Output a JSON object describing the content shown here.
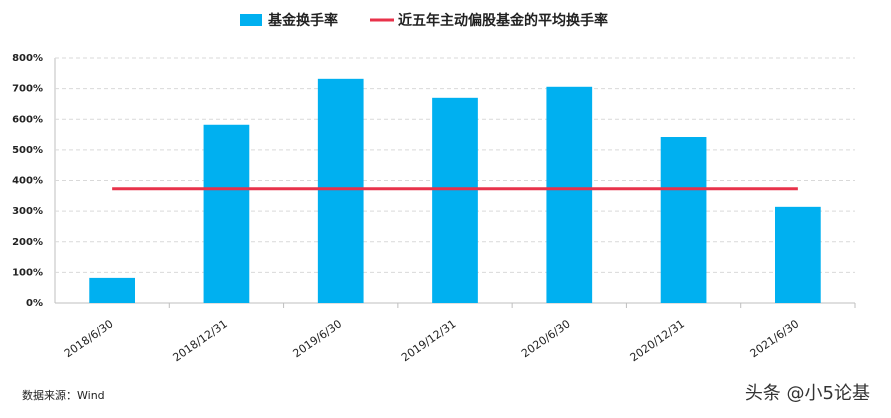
{
  "chart_data": {
    "type": "bar",
    "categories": [
      "2018/6/30",
      "2018/12/31",
      "2019/6/30",
      "2019/12/31",
      "2020/6/30",
      "2020/12/31",
      "2021/6/30"
    ],
    "series": [
      {
        "name": "基金换手率",
        "type": "bar",
        "color": "#00b0f0",
        "values": [
          82,
          582,
          732,
          670,
          706,
          542,
          314
        ]
      },
      {
        "name": "近五年主动偏股基金的平均换手率",
        "type": "line",
        "color": "#e8324a",
        "values": [
          373,
          373,
          373,
          373,
          373,
          373,
          373
        ]
      }
    ],
    "ylim": [
      0,
      800
    ],
    "yticks": [
      {
        "value": 0,
        "label": "0%"
      },
      {
        "value": 100,
        "label": "100%"
      },
      {
        "value": 200,
        "label": "200%"
      },
      {
        "value": 300,
        "label": "300%"
      },
      {
        "value": 400,
        "label": "400%"
      },
      {
        "value": 500,
        "label": "500%"
      },
      {
        "value": 600,
        "label": "600%"
      },
      {
        "value": 700,
        "label": "700%"
      },
      {
        "value": 800,
        "label": "800%"
      }
    ],
    "grid": true,
    "legend": "top",
    "source": "数据来源：Wind",
    "watermark": "头条 @小5论基"
  }
}
